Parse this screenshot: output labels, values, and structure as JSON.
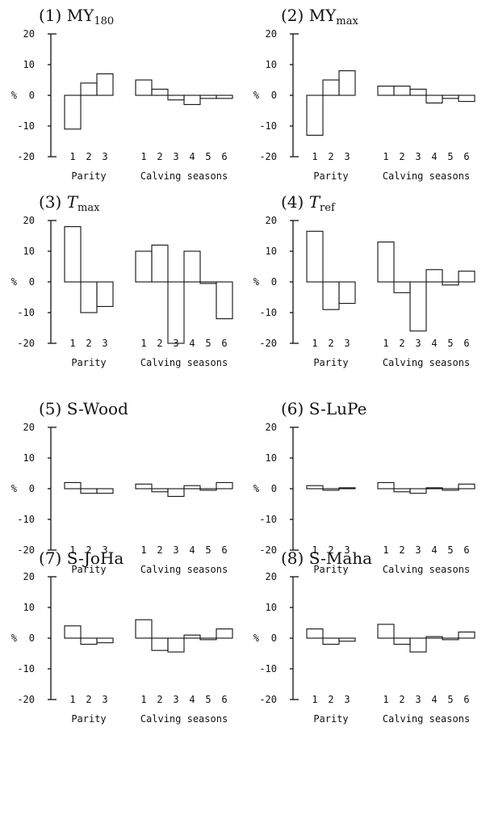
{
  "figure": {
    "ylabel": "%",
    "yticks": [
      "20",
      "10",
      "0",
      "-10",
      "-20"
    ],
    "group_labels": [
      "Parity",
      "Calving seasons"
    ]
  },
  "chart_data": [
    {
      "type": "bar",
      "number": "(1)",
      "title": "MY",
      "title_sub": "180",
      "ylim": [
        -20,
        20
      ],
      "ylabel": "%",
      "groups": [
        {
          "label": "Parity",
          "categories": [
            "1",
            "2",
            "3"
          ],
          "values": [
            -11,
            4,
            7
          ]
        },
        {
          "label": "Calving seasons",
          "categories": [
            "1",
            "2",
            "3",
            "4",
            "5",
            "6"
          ],
          "values": [
            5,
            2,
            -1.5,
            -3,
            -1,
            -1
          ]
        }
      ]
    },
    {
      "type": "bar",
      "number": "(2)",
      "title": "MY",
      "title_sub": "max",
      "ylim": [
        -20,
        20
      ],
      "ylabel": "%",
      "groups": [
        {
          "label": "Parity",
          "categories": [
            "1",
            "2",
            "3"
          ],
          "values": [
            -13,
            5,
            8
          ]
        },
        {
          "label": "Calving seasons",
          "categories": [
            "1",
            "2",
            "3",
            "4",
            "5",
            "6"
          ],
          "values": [
            3,
            3,
            2,
            -2.5,
            -1,
            -2
          ]
        }
      ]
    },
    {
      "type": "bar",
      "number": "(3)",
      "title": "T",
      "title_sub": "max",
      "ylim": [
        -20,
        20
      ],
      "ylabel": "%",
      "groups": [
        {
          "label": "Parity",
          "categories": [
            "1",
            "2",
            "3"
          ],
          "values": [
            18,
            -10,
            -8
          ]
        },
        {
          "label": "Calving seasons",
          "categories": [
            "1",
            "2",
            "3",
            "4",
            "5",
            "6"
          ],
          "values": [
            10,
            12,
            -20,
            10,
            -0.5,
            -12
          ]
        }
      ]
    },
    {
      "type": "bar",
      "number": "(4)",
      "title": "T",
      "title_sub": "ref",
      "ylim": [
        -20,
        20
      ],
      "ylabel": "%",
      "groups": [
        {
          "label": "Parity",
          "categories": [
            "1",
            "2",
            "3"
          ],
          "values": [
            16.5,
            -9,
            -7
          ]
        },
        {
          "label": "Calving seasons",
          "categories": [
            "1",
            "2",
            "3",
            "4",
            "5",
            "6"
          ],
          "values": [
            13,
            -3.5,
            -16,
            4,
            -1,
            3.5
          ]
        }
      ]
    },
    {
      "type": "bar",
      "number": "(5)",
      "title": "S-Wood",
      "title_sub": "",
      "ylim": [
        -20,
        20
      ],
      "ylabel": "%",
      "groups": [
        {
          "label": "Parity",
          "categories": [
            "1",
            "2",
            "3"
          ],
          "values": [
            2,
            -1.5,
            -1.5
          ]
        },
        {
          "label": "Calving seasons",
          "categories": [
            "1",
            "2",
            "3",
            "4",
            "5",
            "6"
          ],
          "values": [
            1.5,
            -1,
            -2.5,
            1,
            -0.5,
            2
          ]
        }
      ]
    },
    {
      "type": "bar",
      "number": "(6)",
      "title": "S-LuPe",
      "title_sub": "",
      "ylim": [
        -20,
        20
      ],
      "ylabel": "%",
      "groups": [
        {
          "label": "Parity",
          "categories": [
            "1",
            "2",
            "3"
          ],
          "values": [
            1,
            -0.5,
            0.3
          ]
        },
        {
          "label": "Calving seasons",
          "categories": [
            "1",
            "2",
            "3",
            "4",
            "5",
            "6"
          ],
          "values": [
            2,
            -1,
            -1.5,
            0.3,
            -0.5,
            1.5
          ]
        }
      ]
    },
    {
      "type": "bar",
      "number": "(7)",
      "title": "S-JoHa",
      "title_sub": "",
      "ylim": [
        -20,
        20
      ],
      "ylabel": "%",
      "groups": [
        {
          "label": "Parity",
          "categories": [
            "1",
            "2",
            "3"
          ],
          "values": [
            4,
            -2,
            -1.5
          ]
        },
        {
          "label": "Calving seasons",
          "categories": [
            "1",
            "2",
            "3",
            "4",
            "5",
            "6"
          ],
          "values": [
            6,
            -4,
            -4.5,
            1,
            -0.5,
            3
          ]
        }
      ]
    },
    {
      "type": "bar",
      "number": "(8)",
      "title": "S-Maha",
      "title_sub": "",
      "ylim": [
        -20,
        20
      ],
      "ylabel": "%",
      "groups": [
        {
          "label": "Parity",
          "categories": [
            "1",
            "2",
            "3"
          ],
          "values": [
            3,
            -2,
            -1
          ]
        },
        {
          "label": "Calving seasons",
          "categories": [
            "1",
            "2",
            "3",
            "4",
            "5",
            "6"
          ],
          "values": [
            4.5,
            -2,
            -4.5,
            0.5,
            -0.5,
            2
          ]
        }
      ]
    }
  ]
}
